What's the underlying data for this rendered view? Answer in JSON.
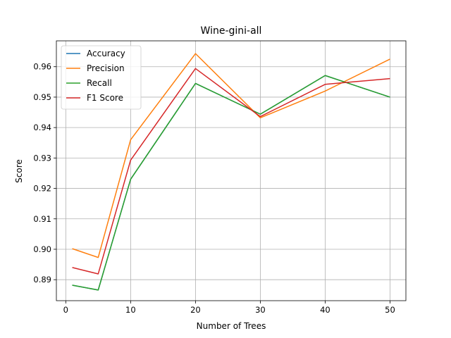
{
  "chart_data": {
    "type": "line",
    "title": "Wine-gini-all",
    "xlabel": "Number of Trees",
    "ylabel": "Score",
    "x": [
      1,
      5,
      10,
      20,
      30,
      40,
      50
    ],
    "xlim": [
      -1.45,
      52.45
    ],
    "ylim": [
      0.8831,
      0.9685
    ],
    "xticks": [
      0,
      10,
      20,
      30,
      40,
      50
    ],
    "yticks": [
      0.89,
      0.9,
      0.91,
      0.92,
      0.93,
      0.94,
      0.95,
      0.96
    ],
    "ytick_labels": [
      "0.89",
      "0.90",
      "0.91",
      "0.92",
      "0.93",
      "0.94",
      "0.95",
      "0.96"
    ],
    "grid": true,
    "legend_position": "top-left",
    "series": [
      {
        "name": "Accuracy",
        "color": "#1f77b4",
        "values": [
          0.8882,
          0.8866,
          0.923,
          0.9545,
          0.9444,
          0.9571,
          0.95
        ]
      },
      {
        "name": "Precision",
        "color": "#ff7f0e",
        "values": [
          0.9002,
          0.8973,
          0.936,
          0.9643,
          0.9432,
          0.952,
          0.9625
        ]
      },
      {
        "name": "Recall",
        "color": "#2ca02c",
        "values": [
          0.8882,
          0.8866,
          0.923,
          0.9545,
          0.9444,
          0.9571,
          0.95
        ]
      },
      {
        "name": "F1 Score",
        "color": "#d62728",
        "values": [
          0.894,
          0.8919,
          0.9293,
          0.9594,
          0.9436,
          0.9542,
          0.9561
        ]
      }
    ]
  }
}
